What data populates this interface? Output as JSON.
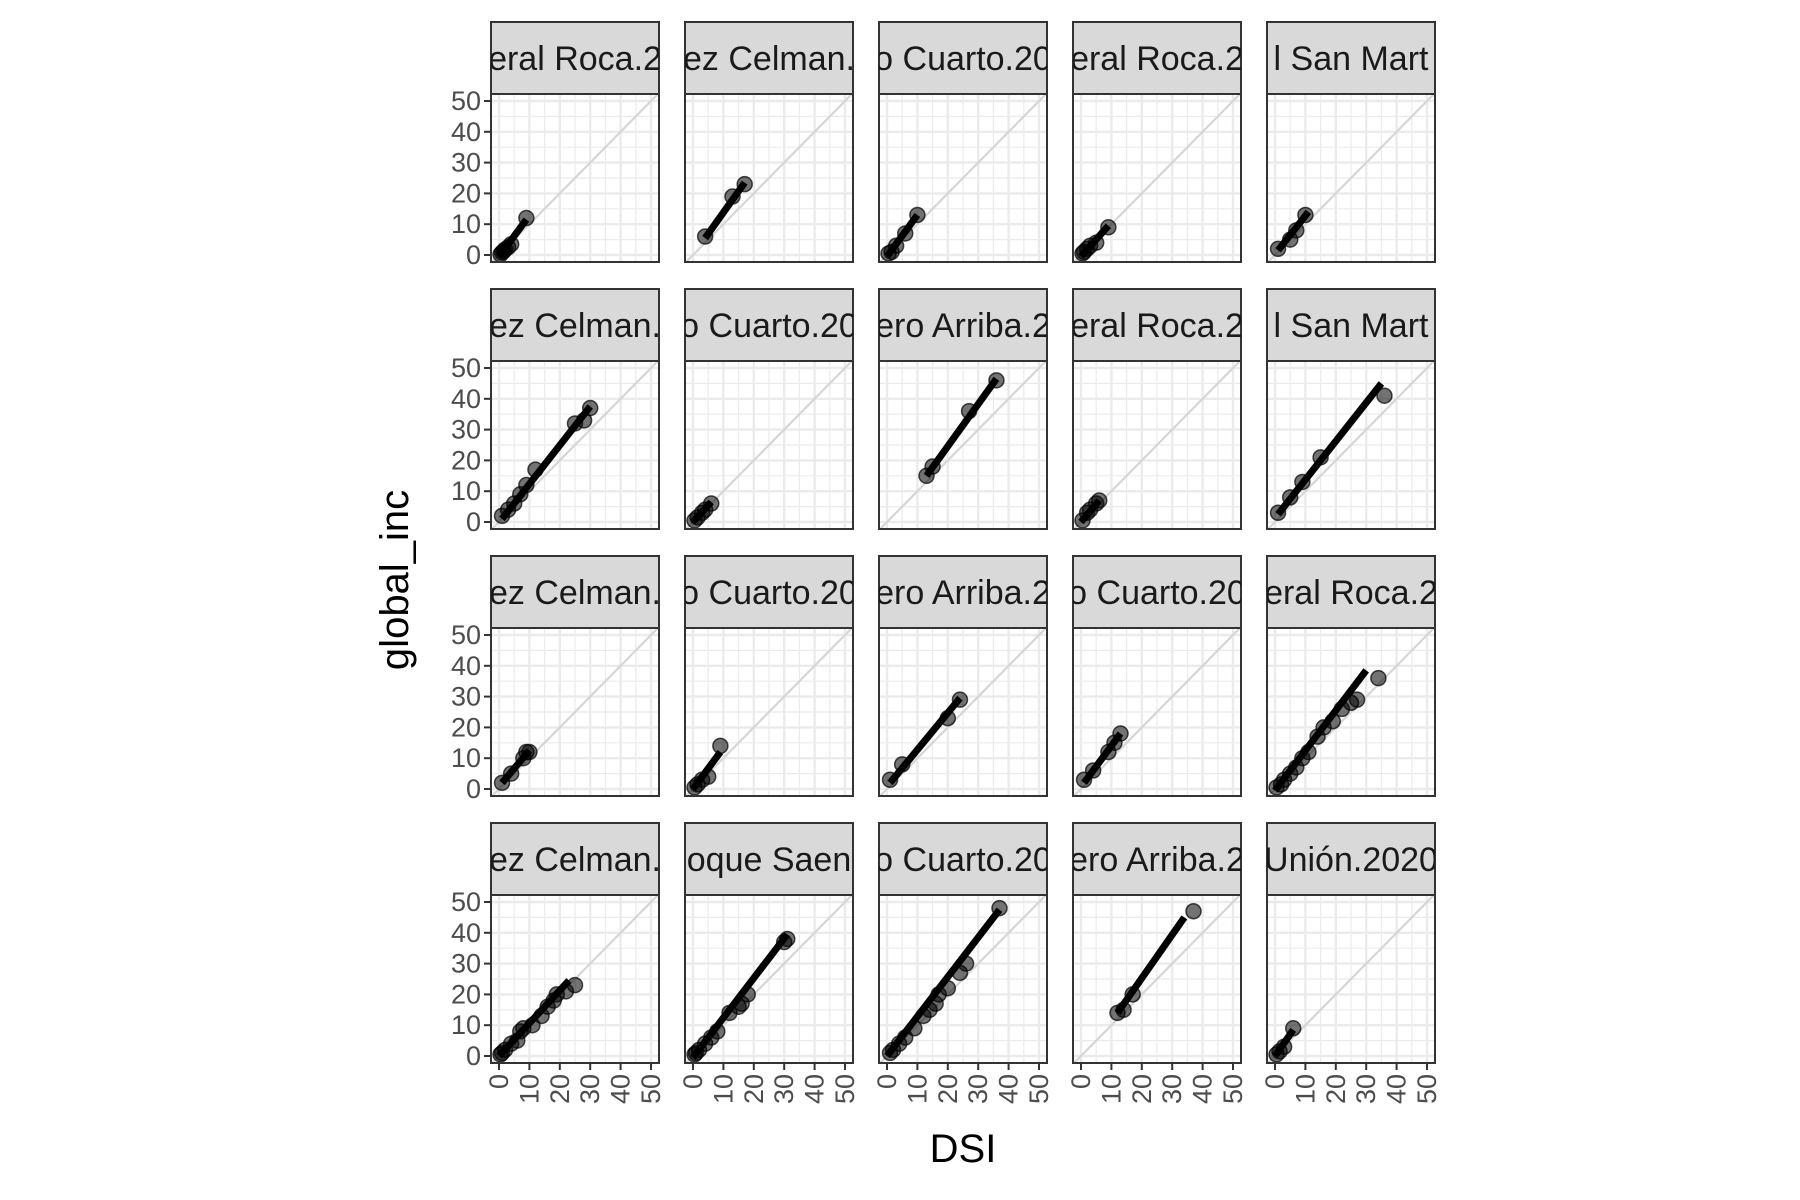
{
  "chart_data": {
    "type": "scatter",
    "xlabel": "DSI",
    "ylabel": "global_inc",
    "xlim": [
      0,
      50
    ],
    "ylim": [
      0,
      50
    ],
    "x_ticks": [
      0,
      10,
      20,
      30,
      40,
      50
    ],
    "y_ticks": [
      0,
      10,
      20,
      30,
      40,
      50
    ],
    "x_tick_labels": [
      "0",
      "10",
      "20",
      "30",
      "40",
      "50"
    ],
    "y_tick_labels": [
      "0",
      "10",
      "20",
      "30",
      "40",
      "50"
    ],
    "grid": true,
    "reference_line": "y = x",
    "fit_line": "linear",
    "legend": "none",
    "layout": {
      "rows": 4,
      "cols": 5
    },
    "panels": [
      {
        "strip": "eral Roca.2",
        "points": [
          [
            0.5,
            0.2
          ],
          [
            1,
            0.8
          ],
          [
            1.5,
            1.2
          ],
          [
            2,
            1.8
          ],
          [
            3,
            2.5
          ],
          [
            4,
            3.5
          ],
          [
            9,
            12
          ]
        ],
        "fit": [
          [
            0,
            -0.5
          ],
          [
            9,
            11.5
          ]
        ]
      },
      {
        "strip": "ez Celman.",
        "points": [
          [
            4,
            6
          ],
          [
            13,
            19
          ],
          [
            17,
            23
          ]
        ],
        "fit": [
          [
            4,
            5.5
          ],
          [
            17,
            23.5
          ]
        ]
      },
      {
        "strip": "o Cuarto.20",
        "points": [
          [
            0.5,
            0.5
          ],
          [
            1.5,
            1
          ],
          [
            3,
            3
          ],
          [
            6,
            7
          ],
          [
            10,
            13
          ]
        ],
        "fit": [
          [
            0,
            -0.5
          ],
          [
            10,
            13
          ]
        ]
      },
      {
        "strip": "eral Roca.2",
        "points": [
          [
            0.5,
            0.5
          ],
          [
            1,
            1
          ],
          [
            2,
            2
          ],
          [
            3,
            3
          ],
          [
            5,
            4
          ],
          [
            9,
            9
          ]
        ],
        "fit": [
          [
            0,
            -0.5
          ],
          [
            9,
            9.5
          ]
        ]
      },
      {
        "strip": "l San Mart",
        "points": [
          [
            1,
            2
          ],
          [
            5,
            5
          ],
          [
            7,
            8
          ],
          [
            10,
            13
          ]
        ],
        "fit": [
          [
            1,
            1.5
          ],
          [
            11,
            14
          ]
        ]
      },
      {
        "strip": "ez Celman.",
        "points": [
          [
            1,
            2
          ],
          [
            3,
            4
          ],
          [
            5,
            6
          ],
          [
            7,
            9
          ],
          [
            9,
            12
          ],
          [
            12,
            17
          ],
          [
            25,
            32
          ],
          [
            28,
            33
          ],
          [
            30,
            37
          ]
        ],
        "fit": [
          [
            1,
            1
          ],
          [
            30,
            37.5
          ]
        ]
      },
      {
        "strip": "o Cuarto.20",
        "points": [
          [
            0.5,
            0.5
          ],
          [
            1.5,
            1.5
          ],
          [
            3,
            3
          ],
          [
            4,
            4
          ],
          [
            6,
            6
          ]
        ],
        "fit": [
          [
            0,
            0
          ],
          [
            6,
            6.5
          ]
        ]
      },
      {
        "strip": "ero Arriba.2",
        "points": [
          [
            13,
            15
          ],
          [
            15,
            18
          ],
          [
            27,
            36
          ],
          [
            36,
            46
          ]
        ],
        "fit": [
          [
            13,
            15
          ],
          [
            36,
            46.5
          ]
        ]
      },
      {
        "strip": "eral Roca.2",
        "points": [
          [
            0.5,
            0.5
          ],
          [
            2,
            3
          ],
          [
            3,
            4
          ],
          [
            5,
            6
          ],
          [
            6,
            7
          ]
        ],
        "fit": [
          [
            0,
            0
          ],
          [
            6,
            7
          ]
        ]
      },
      {
        "strip": "l San Mart",
        "points": [
          [
            1,
            3
          ],
          [
            5,
            8
          ],
          [
            9,
            13
          ],
          [
            15,
            21
          ],
          [
            36,
            41
          ]
        ],
        "fit": [
          [
            1,
            2.5
          ],
          [
            35,
            45
          ]
        ]
      },
      {
        "strip": "ez Celman.",
        "points": [
          [
            1,
            2
          ],
          [
            4,
            5
          ],
          [
            8,
            10
          ],
          [
            9,
            12
          ],
          [
            10,
            12
          ]
        ],
        "fit": [
          [
            1,
            2
          ],
          [
            10,
            12.5
          ]
        ]
      },
      {
        "strip": "o Cuarto.20",
        "points": [
          [
            0.5,
            0.5
          ],
          [
            1.5,
            1.5
          ],
          [
            3,
            3
          ],
          [
            5,
            4
          ],
          [
            9,
            14
          ]
        ],
        "fit": [
          [
            0,
            0
          ],
          [
            9,
            12
          ]
        ]
      },
      {
        "strip": "ero Arriba.2",
        "points": [
          [
            1,
            3
          ],
          [
            5,
            8
          ],
          [
            20,
            23
          ],
          [
            24,
            29
          ]
        ],
        "fit": [
          [
            1,
            2
          ],
          [
            24,
            29.5
          ]
        ]
      },
      {
        "strip": "o Cuarto.20",
        "points": [
          [
            1,
            3
          ],
          [
            4,
            6
          ],
          [
            9,
            12
          ],
          [
            11,
            15
          ],
          [
            13,
            18
          ]
        ],
        "fit": [
          [
            1,
            2
          ],
          [
            13,
            18
          ]
        ]
      },
      {
        "strip": "eral Roca.2",
        "points": [
          [
            0.5,
            0.5
          ],
          [
            2,
            1.5
          ],
          [
            3,
            3
          ],
          [
            5,
            5
          ],
          [
            7,
            7
          ],
          [
            9,
            10
          ],
          [
            11,
            12
          ],
          [
            14,
            17
          ],
          [
            16,
            20
          ],
          [
            19,
            22
          ],
          [
            22,
            26
          ],
          [
            25,
            28
          ],
          [
            27,
            29
          ],
          [
            34,
            36
          ]
        ],
        "fit": [
          [
            0,
            -0.5
          ],
          [
            30,
            38.5
          ]
        ]
      },
      {
        "strip": "ez Celman.",
        "points": [
          [
            0.5,
            0.5
          ],
          [
            1,
            1
          ],
          [
            2,
            2
          ],
          [
            4,
            4
          ],
          [
            6,
            5
          ],
          [
            7,
            8
          ],
          [
            8,
            9
          ],
          [
            11,
            10
          ],
          [
            14,
            13
          ],
          [
            16,
            16
          ],
          [
            18,
            18
          ],
          [
            19,
            20
          ],
          [
            22,
            21
          ],
          [
            25,
            23
          ]
        ],
        "fit": [
          [
            0,
            0
          ],
          [
            23,
            24.5
          ]
        ]
      },
      {
        "strip": "oque Saen",
        "points": [
          [
            0.5,
            0.5
          ],
          [
            1,
            1
          ],
          [
            2,
            2
          ],
          [
            4,
            4
          ],
          [
            6,
            6
          ],
          [
            8,
            8
          ],
          [
            12,
            14
          ],
          [
            15,
            16
          ],
          [
            16,
            17
          ],
          [
            18,
            20
          ],
          [
            30,
            37
          ],
          [
            31,
            38
          ]
        ],
        "fit": [
          [
            0,
            -0.5
          ],
          [
            31,
            39.5
          ]
        ]
      },
      {
        "strip": "o Cuarto.20",
        "points": [
          [
            1,
            1
          ],
          [
            2,
            2
          ],
          [
            4,
            4
          ],
          [
            6,
            6
          ],
          [
            9,
            9
          ],
          [
            12,
            13
          ],
          [
            14,
            15
          ],
          [
            16,
            17
          ],
          [
            17,
            20
          ],
          [
            20,
            22
          ],
          [
            24,
            27
          ],
          [
            26,
            30
          ],
          [
            37,
            48
          ]
        ],
        "fit": [
          [
            0,
            0
          ],
          [
            37,
            47.5
          ]
        ]
      },
      {
        "strip": "ero Arriba.2",
        "points": [
          [
            12,
            14
          ],
          [
            14,
            15
          ],
          [
            17,
            20
          ],
          [
            37,
            47
          ]
        ],
        "fit": [
          [
            12,
            14
          ],
          [
            34,
            45
          ]
        ]
      },
      {
        "strip": "Unión.2020",
        "points": [
          [
            0.5,
            0.5
          ],
          [
            1.5,
            1.5
          ],
          [
            3,
            3
          ],
          [
            6,
            9
          ]
        ],
        "fit": [
          [
            0,
            0
          ],
          [
            6,
            8.5
          ]
        ]
      }
    ]
  }
}
